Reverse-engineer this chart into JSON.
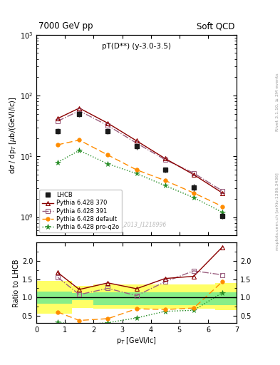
{
  "title_left": "7000 GeV pp",
  "title_right": "Soft QCD",
  "subplot_title": "pT(D**) (y-3.0-3.5)",
  "watermark": "LHCB_2013_I1218996",
  "right_label_top": "Rivet 3.1.10, ≥ 2M events",
  "right_label_bot": "mcplots.cern.ch [arXiv:1306.3436]",
  "lhcb_pt": [
    0.75,
    1.5,
    2.5,
    3.5,
    4.5,
    5.5,
    6.5
  ],
  "lhcb_val": [
    26.0,
    50.0,
    26.0,
    14.5,
    6.0,
    3.1,
    1.05
  ],
  "lhcb_err": [
    2.5,
    5.0,
    2.5,
    1.5,
    0.6,
    0.4,
    0.12
  ],
  "py370_pt": [
    0.75,
    1.5,
    2.5,
    3.5,
    4.5,
    5.5,
    6.5
  ],
  "py370_val": [
    42.0,
    62.0,
    35.0,
    18.0,
    9.2,
    5.0,
    2.5
  ],
  "py391_pt": [
    0.75,
    1.5,
    2.5,
    3.5,
    4.5,
    5.5,
    6.5
  ],
  "py391_val": [
    38.0,
    56.0,
    32.0,
    16.5,
    8.8,
    5.3,
    2.7
  ],
  "pydef_pt": [
    0.75,
    1.5,
    2.5,
    3.5,
    4.5,
    5.5,
    6.5
  ],
  "pydef_val": [
    15.5,
    18.5,
    10.5,
    6.0,
    4.0,
    2.5,
    1.5
  ],
  "pyq2o_pt": [
    0.75,
    1.5,
    2.5,
    3.5,
    4.5,
    5.5,
    6.5
  ],
  "pyq2o_val": [
    8.0,
    12.5,
    7.5,
    5.2,
    3.3,
    2.1,
    1.2
  ],
  "ratio_py370": [
    1.68,
    1.22,
    1.4,
    1.24,
    1.52,
    1.58,
    2.38
  ],
  "ratio_py391": [
    1.55,
    1.08,
    1.25,
    1.05,
    1.43,
    1.73,
    1.62
  ],
  "ratio_pydef": [
    0.6,
    0.37,
    0.42,
    0.69,
    0.67,
    0.71,
    1.43
  ],
  "ratio_pyq2o": [
    0.32,
    0.25,
    0.31,
    0.44,
    0.62,
    0.65,
    1.13
  ],
  "band_pt_edges": [
    0.0,
    1.25,
    2.0,
    5.0,
    6.25,
    7.0
  ],
  "band_yellow_lo": [
    0.55,
    0.72,
    0.7,
    0.7,
    0.65,
    0.65
  ],
  "band_yellow_hi": [
    1.45,
    1.32,
    1.35,
    1.35,
    1.4,
    1.4
  ],
  "band_green_lo": [
    0.83,
    0.93,
    0.8,
    0.8,
    0.8,
    0.8
  ],
  "band_green_hi": [
    1.17,
    1.12,
    1.15,
    1.15,
    1.15,
    1.15
  ],
  "color_lhcb": "#1a1a1a",
  "color_py370": "#8b0000",
  "color_py391": "#9b6080",
  "color_pydef": "#ff8c00",
  "color_pyq2o": "#228b22",
  "xlim": [
    0.0,
    7.0
  ],
  "ylim_main": [
    0.5,
    1000.0
  ],
  "ylim_ratio": [
    0.3,
    2.5
  ],
  "ratio_yticks": [
    0.5,
    1.0,
    1.5,
    2.0
  ]
}
